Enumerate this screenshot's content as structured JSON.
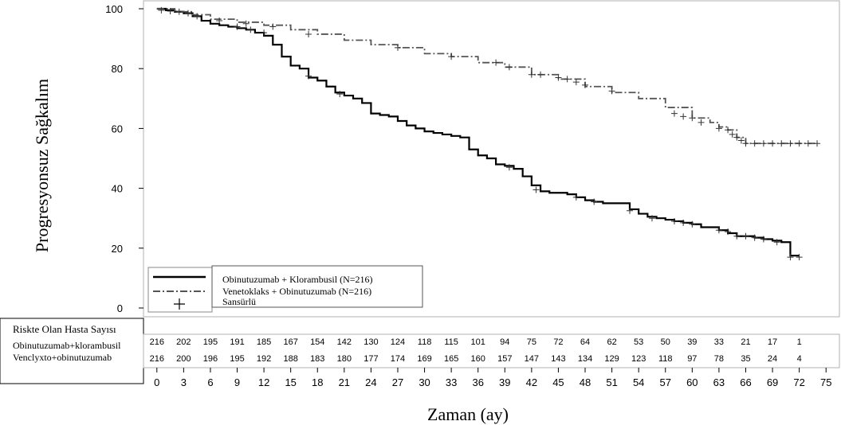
{
  "chart_data": {
    "type": "line",
    "ylabel": "Progresyonsuz Sağkalım",
    "xlabel": "Zaman (ay)",
    "xlim": [
      -1.5,
      76.5
    ],
    "ylim": [
      0,
      100
    ],
    "y_ticks": [
      0,
      20,
      40,
      60,
      80,
      100
    ],
    "x_ticks": [
      0,
      3,
      6,
      9,
      12,
      15,
      18,
      21,
      24,
      27,
      30,
      33,
      36,
      39,
      42,
      45,
      48,
      51,
      54,
      57,
      60,
      63,
      66,
      69,
      72,
      75
    ],
    "legend_position": "bottom-left",
    "legend": {
      "series1": "Obinutuzumab + Klorambusil (N=216)",
      "series2": "Venetoklaks + Obinutuzumab (N=216)",
      "censored": "Sansürlü"
    },
    "series": [
      {
        "name": "Obinutuzumab + Klorambusil (N=216)",
        "style": "solid",
        "color": "#000000",
        "points": [
          [
            0,
            100
          ],
          [
            1,
            99.5
          ],
          [
            2,
            99
          ],
          [
            3,
            98.5
          ],
          [
            4,
            97.5
          ],
          [
            5,
            96
          ],
          [
            6,
            95
          ],
          [
            7,
            94.5
          ],
          [
            8,
            94
          ],
          [
            9,
            93.5
          ],
          [
            10,
            93
          ],
          [
            11,
            92
          ],
          [
            12,
            91
          ],
          [
            13,
            88
          ],
          [
            14,
            84
          ],
          [
            15,
            81
          ],
          [
            16,
            80
          ],
          [
            17,
            77
          ],
          [
            18,
            76
          ],
          [
            19,
            74
          ],
          [
            20,
            72
          ],
          [
            21,
            71
          ],
          [
            22,
            70
          ],
          [
            23,
            68.5
          ],
          [
            24,
            65
          ],
          [
            25,
            64.5
          ],
          [
            26,
            64
          ],
          [
            27,
            62.5
          ],
          [
            28,
            61
          ],
          [
            29,
            60
          ],
          [
            30,
            59
          ],
          [
            31,
            58.5
          ],
          [
            32,
            58
          ],
          [
            33,
            57.5
          ],
          [
            34,
            57
          ],
          [
            35,
            53
          ],
          [
            36,
            51
          ],
          [
            37,
            50
          ],
          [
            38,
            48
          ],
          [
            39,
            47.5
          ],
          [
            40,
            46.5
          ],
          [
            41,
            44
          ],
          [
            42,
            41
          ],
          [
            43,
            39
          ],
          [
            44,
            38.5
          ],
          [
            45,
            38.5
          ],
          [
            46,
            38
          ],
          [
            47,
            37
          ],
          [
            48,
            36
          ],
          [
            49,
            35.5
          ],
          [
            50,
            35
          ],
          [
            51,
            35
          ],
          [
            52,
            35
          ],
          [
            53,
            33
          ],
          [
            54,
            31.5
          ],
          [
            55,
            30.5
          ],
          [
            56,
            30
          ],
          [
            57,
            29.5
          ],
          [
            58,
            29
          ],
          [
            59,
            28.5
          ],
          [
            60,
            28
          ],
          [
            61,
            27
          ],
          [
            62,
            27
          ],
          [
            63,
            26
          ],
          [
            64,
            25
          ],
          [
            65,
            24
          ],
          [
            66,
            24
          ],
          [
            67,
            23.5
          ],
          [
            68,
            23
          ],
          [
            69,
            22.5
          ],
          [
            70,
            22
          ],
          [
            71,
            17.5
          ],
          [
            72,
            17.5
          ]
        ],
        "censored": [
          [
            9,
            94
          ],
          [
            10.5,
            93
          ],
          [
            12,
            92
          ],
          [
            17,
            77.5
          ],
          [
            20.5,
            71.5
          ],
          [
            39.5,
            47
          ],
          [
            42.5,
            39.5
          ],
          [
            47,
            37
          ],
          [
            49,
            35.5
          ],
          [
            53,
            32.5
          ],
          [
            55.5,
            30
          ],
          [
            58,
            29
          ],
          [
            59,
            28.5
          ],
          [
            60,
            28
          ],
          [
            63,
            26
          ],
          [
            64,
            25.5
          ],
          [
            65,
            24
          ],
          [
            66,
            24
          ],
          [
            67,
            23.5
          ],
          [
            68,
            23
          ],
          [
            69.5,
            22
          ],
          [
            71,
            17
          ],
          [
            72,
            17
          ]
        ]
      },
      {
        "name": "Venetoklaks + Obinutuzumab (N=216)",
        "style": "dashdot",
        "color": "#555555",
        "points": [
          [
            0,
            100
          ],
          [
            2,
            99
          ],
          [
            4,
            98
          ],
          [
            6,
            96.5
          ],
          [
            9,
            95.5
          ],
          [
            12,
            94.5
          ],
          [
            15,
            93
          ],
          [
            18,
            91.5
          ],
          [
            21,
            89.5
          ],
          [
            24,
            88
          ],
          [
            27,
            87
          ],
          [
            30,
            85
          ],
          [
            33,
            84
          ],
          [
            36,
            82
          ],
          [
            39,
            80.5
          ],
          [
            42,
            78
          ],
          [
            45,
            76.5
          ],
          [
            48,
            74
          ],
          [
            51,
            72
          ],
          [
            54,
            70
          ],
          [
            57,
            67
          ],
          [
            60,
            63.5
          ],
          [
            62,
            62
          ],
          [
            63,
            60.5
          ],
          [
            64,
            59.5
          ],
          [
            65,
            57
          ],
          [
            66,
            55
          ],
          [
            69,
            55
          ],
          [
            72,
            55
          ],
          [
            74,
            55
          ]
        ],
        "censored": [
          [
            0.5,
            99.5
          ],
          [
            1.5,
            99.2
          ],
          [
            2.5,
            99
          ],
          [
            3.5,
            98.5
          ],
          [
            4.5,
            97.5
          ],
          [
            7,
            96
          ],
          [
            10,
            95
          ],
          [
            13,
            94
          ],
          [
            17,
            91.5
          ],
          [
            27,
            87
          ],
          [
            33,
            84
          ],
          [
            38,
            82
          ],
          [
            39.5,
            80.5
          ],
          [
            42,
            78
          ],
          [
            43,
            78
          ],
          [
            45,
            77
          ],
          [
            46,
            76.5
          ],
          [
            47,
            75.5
          ],
          [
            48,
            74.5
          ],
          [
            51,
            72.5
          ],
          [
            58,
            65
          ],
          [
            59,
            64
          ],
          [
            60,
            63.5
          ],
          [
            61,
            62
          ],
          [
            63,
            60
          ],
          [
            64,
            59.5
          ],
          [
            64.5,
            58
          ],
          [
            65,
            57
          ],
          [
            65.5,
            56
          ],
          [
            66,
            55
          ],
          [
            67,
            55
          ],
          [
            68,
            55
          ],
          [
            69,
            55
          ],
          [
            70,
            55
          ],
          [
            71,
            55
          ],
          [
            72,
            55
          ],
          [
            73,
            55
          ],
          [
            74,
            55
          ]
        ]
      }
    ],
    "risk_table": {
      "title": "Riskte Olan Hasta Sayısı",
      "rows": [
        {
          "label": "Obinutuzumab+klorambusil",
          "values": [
            "216",
            "202",
            "195",
            "191",
            "185",
            "167",
            "154",
            "142",
            "130",
            "124",
            "118",
            "115",
            "101",
            "94",
            "75",
            "72",
            "64",
            "62",
            "53",
            "50",
            "39",
            "33",
            "21",
            "17",
            "1"
          ]
        },
        {
          "label": "Venclyxto+obinutuzumab",
          "values": [
            "216",
            "200",
            "196",
            "195",
            "192",
            "188",
            "183",
            "180",
            "177",
            "174",
            "169",
            "165",
            "160",
            "157",
            "147",
            "143",
            "134",
            "129",
            "123",
            "118",
            "97",
            "78",
            "35",
            "24",
            "4"
          ]
        }
      ]
    }
  }
}
